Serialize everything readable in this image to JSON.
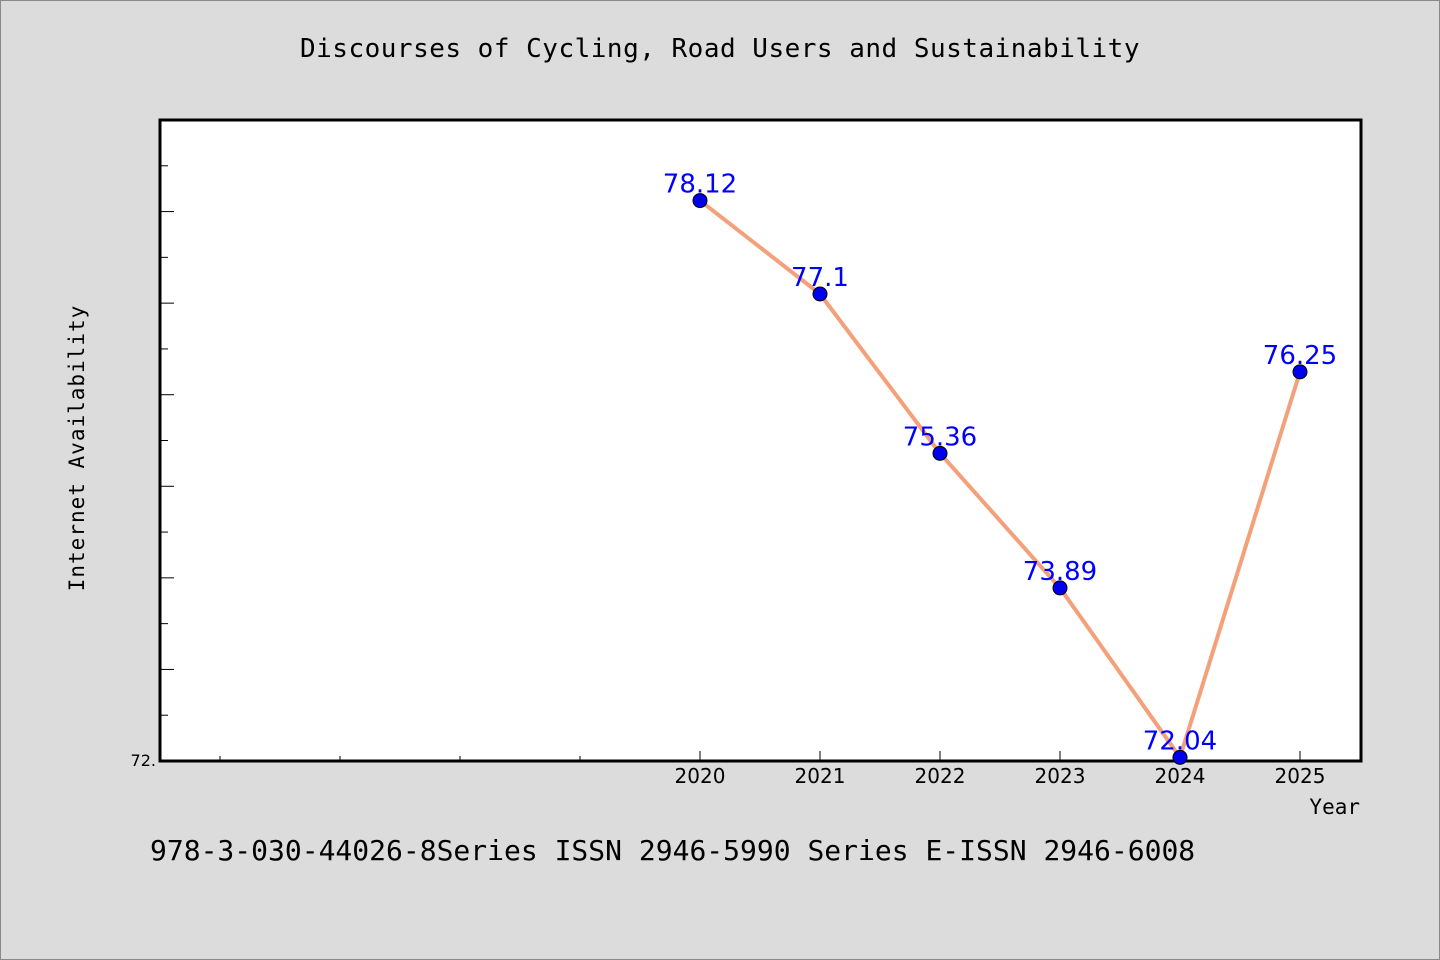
{
  "chart_data": {
    "type": "line",
    "title": "Discourses of Cycling, Road Users and Sustainability",
    "xlabel": "Year",
    "ylabel": "Internet Availability",
    "x": [
      "2020",
      "2021",
      "2022",
      "2023",
      "2024",
      "2025"
    ],
    "series": [
      {
        "values": [
          78.12,
          77.1,
          75.36,
          73.89,
          72.04,
          76.25
        ],
        "data_labels": [
          "78.12",
          "77.1",
          "75.36",
          "73.89",
          "72.04",
          "76.25"
        ]
      }
    ],
    "ylim": [
      72.0,
      79.0
    ],
    "y_tick_labels": [
      "72."
    ],
    "grid": false,
    "colors": {
      "line": "#f4a07a",
      "marker": "#0000ee",
      "label": "#0000ff"
    }
  },
  "footer": "978-3-030-44026-8Series ISSN 2946-5990 Series E-ISSN 2946-6008"
}
